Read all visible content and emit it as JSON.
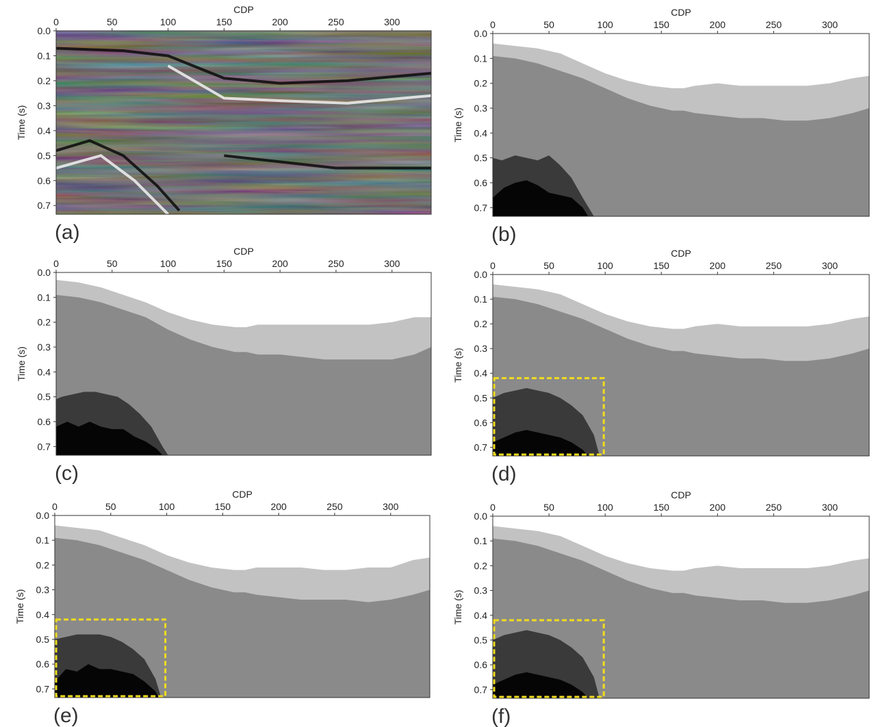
{
  "figure": {
    "colors": {
      "seismic_dark": "#0a0a0a",
      "seismic_light": "#f2f2f2",
      "facies_white": "#ffffff",
      "facies_light": "#c2c2c2",
      "facies_mid": "#8a8a8a",
      "facies_dark": "#3a3a3a",
      "facies_black": "#050505",
      "highlight_box": "#f0dc1e"
    }
  },
  "chart_data": [
    {
      "id": "a",
      "panel_label": "(a)",
      "type": "heatmap",
      "xlabel": "CDP",
      "ylabel": "Time (s)",
      "xlim": [
        0,
        335
      ],
      "ylim": [
        0.0,
        0.735
      ],
      "xticks": [
        "0",
        "50",
        "100",
        "150",
        "200",
        "250",
        "300"
      ],
      "yticks": [
        "0.0",
        "0.1",
        "0.2",
        "0.3",
        "0.4",
        "0.5",
        "0.6",
        "0.7"
      ],
      "colormap": "gray",
      "content": "seismic amplitude section",
      "grid": false
    },
    {
      "id": "b",
      "panel_label": "(b)",
      "type": "heatmap",
      "xlabel": "CDP",
      "ylabel": "Time (s)",
      "xlim": [
        0,
        335
      ],
      "ylim": [
        0.0,
        0.735
      ],
      "xticks": [
        "0",
        "50",
        "100",
        "150",
        "200",
        "250",
        "300"
      ],
      "yticks": [
        "0.0",
        "0.1",
        "0.2",
        "0.3",
        "0.4",
        "0.5",
        "0.6",
        "0.7"
      ],
      "grid": false,
      "facies_boundaries": {
        "cdp": [
          0,
          20,
          40,
          60,
          80,
          100,
          120,
          140,
          160,
          170,
          180,
          200,
          220,
          240,
          260,
          280,
          300,
          320,
          335
        ],
        "top_light": [
          0.04,
          0.05,
          0.06,
          0.08,
          0.12,
          0.16,
          0.19,
          0.21,
          0.22,
          0.22,
          0.21,
          0.2,
          0.21,
          0.21,
          0.21,
          0.21,
          0.2,
          0.18,
          0.17
        ],
        "top_mid": [
          0.09,
          0.1,
          0.12,
          0.15,
          0.18,
          0.22,
          0.26,
          0.29,
          0.31,
          0.31,
          0.32,
          0.33,
          0.34,
          0.34,
          0.35,
          0.35,
          0.34,
          0.32,
          0.3
        ],
        "top_dark": {
          "cdp": [
            0,
            8,
            20,
            30,
            40,
            50,
            60,
            70,
            80,
            90
          ],
          "time": [
            0.5,
            0.51,
            0.49,
            0.5,
            0.51,
            0.49,
            0.53,
            0.58,
            0.66,
            0.735
          ]
        },
        "top_black": {
          "cdp": [
            0,
            10,
            20,
            30,
            40,
            50,
            60,
            70,
            80,
            85
          ],
          "time": [
            0.66,
            0.62,
            0.6,
            0.59,
            0.61,
            0.64,
            0.65,
            0.66,
            0.7,
            0.735
          ]
        }
      }
    },
    {
      "id": "c",
      "panel_label": "(c)",
      "type": "heatmap",
      "xlabel": "CDP",
      "ylabel": "Time (s)",
      "xlim": [
        0,
        335
      ],
      "ylim": [
        0.0,
        0.735
      ],
      "xticks": [
        "0",
        "50",
        "100",
        "150",
        "200",
        "250",
        "300"
      ],
      "yticks": [
        "0.0",
        "0.1",
        "0.2",
        "0.3",
        "0.4",
        "0.5",
        "0.6",
        "0.7"
      ],
      "grid": false,
      "facies_boundaries": {
        "cdp": [
          0,
          20,
          40,
          60,
          80,
          100,
          120,
          140,
          160,
          170,
          180,
          200,
          220,
          240,
          260,
          280,
          300,
          320,
          335
        ],
        "top_light": [
          0.03,
          0.04,
          0.06,
          0.09,
          0.12,
          0.16,
          0.19,
          0.21,
          0.22,
          0.22,
          0.21,
          0.21,
          0.21,
          0.21,
          0.21,
          0.21,
          0.2,
          0.18,
          0.18
        ],
        "top_mid": [
          0.09,
          0.1,
          0.12,
          0.15,
          0.18,
          0.23,
          0.27,
          0.3,
          0.32,
          0.32,
          0.33,
          0.33,
          0.34,
          0.35,
          0.35,
          0.35,
          0.35,
          0.33,
          0.3
        ],
        "top_dark": {
          "cdp": [
            0,
            5,
            15,
            25,
            35,
            45,
            55,
            65,
            75,
            85,
            95,
            100
          ],
          "time": [
            0.51,
            0.5,
            0.49,
            0.48,
            0.48,
            0.49,
            0.5,
            0.53,
            0.57,
            0.62,
            0.7,
            0.735
          ]
        },
        "top_black": {
          "cdp": [
            0,
            10,
            20,
            30,
            40,
            50,
            60,
            70,
            80,
            90,
            95
          ],
          "time": [
            0.62,
            0.6,
            0.62,
            0.6,
            0.62,
            0.63,
            0.63,
            0.66,
            0.68,
            0.71,
            0.735
          ]
        }
      }
    },
    {
      "id": "d",
      "panel_label": "(d)",
      "type": "heatmap",
      "xlabel": "CDP",
      "ylabel": "Time (s)",
      "xlim": [
        0,
        335
      ],
      "ylim": [
        0.0,
        0.735
      ],
      "xticks": [
        "0",
        "50",
        "100",
        "150",
        "200",
        "250",
        "300"
      ],
      "yticks": [
        "0.0",
        "0.1",
        "0.2",
        "0.3",
        "0.4",
        "0.5",
        "0.6",
        "0.7"
      ],
      "grid": false,
      "highlight_box": {
        "cdp": [
          0,
          100
        ],
        "time": [
          0.42,
          0.735
        ]
      },
      "facies_boundaries": {
        "cdp": [
          0,
          20,
          40,
          60,
          80,
          100,
          120,
          140,
          160,
          170,
          180,
          200,
          220,
          240,
          260,
          280,
          300,
          320,
          335
        ],
        "top_light": [
          0.04,
          0.05,
          0.06,
          0.08,
          0.12,
          0.16,
          0.19,
          0.21,
          0.22,
          0.22,
          0.21,
          0.2,
          0.21,
          0.21,
          0.21,
          0.21,
          0.2,
          0.18,
          0.17
        ],
        "top_mid": [
          0.09,
          0.1,
          0.12,
          0.15,
          0.18,
          0.22,
          0.26,
          0.29,
          0.31,
          0.31,
          0.32,
          0.33,
          0.34,
          0.34,
          0.35,
          0.35,
          0.34,
          0.32,
          0.3
        ],
        "top_dark": {
          "cdp": [
            0,
            10,
            20,
            30,
            40,
            50,
            60,
            70,
            80,
            90,
            95
          ],
          "time": [
            0.5,
            0.48,
            0.47,
            0.46,
            0.47,
            0.48,
            0.5,
            0.53,
            0.57,
            0.65,
            0.735
          ]
        },
        "top_black": {
          "cdp": [
            0,
            10,
            20,
            30,
            40,
            50,
            60,
            70,
            80,
            85
          ],
          "time": [
            0.68,
            0.66,
            0.64,
            0.63,
            0.64,
            0.65,
            0.66,
            0.68,
            0.71,
            0.735
          ]
        }
      }
    },
    {
      "id": "e",
      "panel_label": "(e)",
      "type": "heatmap",
      "xlabel": "CDP",
      "ylabel": "Time (s)",
      "xlim": [
        0,
        335
      ],
      "ylim": [
        0.0,
        0.735
      ],
      "xticks": [
        "0",
        "50",
        "100",
        "150",
        "200",
        "250",
        "300"
      ],
      "yticks": [
        "0.0",
        "0.1",
        "0.2",
        "0.3",
        "0.4",
        "0.5",
        "0.6",
        "0.7"
      ],
      "grid": false,
      "highlight_box": {
        "cdp": [
          0,
          100
        ],
        "time": [
          0.42,
          0.735
        ]
      },
      "facies_boundaries": {
        "cdp": [
          0,
          20,
          40,
          60,
          80,
          100,
          120,
          140,
          160,
          170,
          180,
          200,
          220,
          240,
          260,
          280,
          300,
          320,
          335
        ],
        "top_light": [
          0.04,
          0.05,
          0.06,
          0.09,
          0.12,
          0.16,
          0.19,
          0.21,
          0.22,
          0.22,
          0.21,
          0.21,
          0.21,
          0.22,
          0.22,
          0.21,
          0.21,
          0.18,
          0.17
        ],
        "top_mid": [
          0.09,
          0.1,
          0.12,
          0.15,
          0.18,
          0.22,
          0.26,
          0.29,
          0.31,
          0.31,
          0.32,
          0.33,
          0.34,
          0.34,
          0.34,
          0.35,
          0.34,
          0.32,
          0.3
        ],
        "top_dark": {
          "cdp": [
            0,
            10,
            20,
            30,
            40,
            50,
            60,
            70,
            80,
            90,
            95
          ],
          "time": [
            0.5,
            0.49,
            0.48,
            0.48,
            0.48,
            0.49,
            0.51,
            0.54,
            0.58,
            0.66,
            0.735
          ]
        },
        "top_black": {
          "cdp": [
            0,
            10,
            20,
            30,
            40,
            50,
            60,
            70,
            80,
            90,
            93
          ],
          "time": [
            0.67,
            0.62,
            0.63,
            0.6,
            0.62,
            0.62,
            0.63,
            0.64,
            0.67,
            0.71,
            0.735
          ]
        }
      }
    },
    {
      "id": "f",
      "panel_label": "(f)",
      "type": "heatmap",
      "xlabel": "CDP",
      "ylabel": "Time (s)",
      "xlim": [
        0,
        335
      ],
      "ylim": [
        0.0,
        0.735
      ],
      "xticks": [
        "0",
        "50",
        "100",
        "150",
        "200",
        "250",
        "300"
      ],
      "yticks": [
        "0.0",
        "0.1",
        "0.2",
        "0.3",
        "0.4",
        "0.5",
        "0.6",
        "0.7"
      ],
      "grid": false,
      "highlight_box": {
        "cdp": [
          0,
          100
        ],
        "time": [
          0.42,
          0.735
        ]
      },
      "facies_boundaries": {
        "cdp": [
          0,
          20,
          40,
          60,
          80,
          100,
          120,
          140,
          160,
          170,
          180,
          200,
          220,
          240,
          260,
          280,
          300,
          320,
          335
        ],
        "top_light": [
          0.04,
          0.05,
          0.06,
          0.08,
          0.12,
          0.16,
          0.19,
          0.21,
          0.22,
          0.22,
          0.21,
          0.2,
          0.21,
          0.21,
          0.21,
          0.21,
          0.2,
          0.18,
          0.17
        ],
        "top_mid": [
          0.09,
          0.1,
          0.12,
          0.15,
          0.18,
          0.22,
          0.26,
          0.29,
          0.31,
          0.31,
          0.32,
          0.33,
          0.34,
          0.34,
          0.35,
          0.35,
          0.34,
          0.32,
          0.3
        ],
        "top_dark": {
          "cdp": [
            0,
            10,
            20,
            30,
            40,
            50,
            60,
            70,
            80,
            90,
            95
          ],
          "time": [
            0.5,
            0.48,
            0.47,
            0.46,
            0.47,
            0.48,
            0.5,
            0.53,
            0.57,
            0.65,
            0.735
          ]
        },
        "top_black": {
          "cdp": [
            0,
            10,
            20,
            30,
            40,
            50,
            60,
            70,
            80,
            85
          ],
          "time": [
            0.68,
            0.66,
            0.64,
            0.63,
            0.64,
            0.65,
            0.66,
            0.68,
            0.71,
            0.735
          ]
        }
      }
    }
  ]
}
